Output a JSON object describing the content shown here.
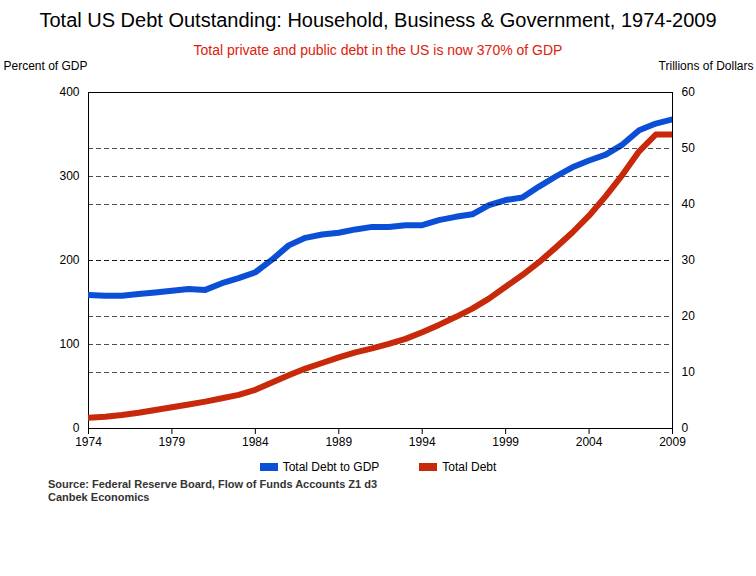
{
  "chart_data": {
    "type": "line",
    "title": "Total US Debt Outstanding: Household, Business & Government, 1974-2009",
    "subtitle": "Total private and public debt in the US is now 370% of GDP",
    "y_label": "Percent of GDP",
    "y2_label": "Trillions of Dollars",
    "x": [
      1974,
      1975,
      1976,
      1977,
      1978,
      1979,
      1980,
      1981,
      1982,
      1983,
      1984,
      1985,
      1986,
      1987,
      1988,
      1989,
      1990,
      1991,
      1992,
      1993,
      1994,
      1995,
      1996,
      1997,
      1998,
      1999,
      2000,
      2001,
      2002,
      2003,
      2004,
      2005,
      2006,
      2007,
      2008,
      2009
    ],
    "xlim": [
      1974,
      2009
    ],
    "xticks": [
      1974,
      1979,
      1984,
      1989,
      1994,
      1999,
      2004,
      2009
    ],
    "ylim": [
      0,
      400
    ],
    "yticks": [
      0,
      100,
      200,
      300,
      400
    ],
    "y2lim": [
      0,
      60
    ],
    "y2ticks": [
      0,
      10,
      20,
      30,
      40,
      50,
      60
    ],
    "grid": true,
    "legend": "bottom",
    "series": [
      {
        "name": "Total Debt to GDP",
        "color": "#0a4fd6",
        "values": [
          159,
          158,
          158,
          160,
          162,
          164,
          166,
          165,
          173,
          179,
          186,
          201,
          218,
          227,
          231,
          233,
          237,
          240,
          240,
          242,
          242,
          248,
          252,
          255,
          266,
          272,
          275,
          288,
          300,
          311,
          319,
          326,
          338,
          355,
          363,
          368
        ]
      },
      {
        "name": "Total Debt",
        "color": "#c8290a",
        "axis": "y2",
        "values": [
          1.9,
          2.1,
          2.4,
          2.8,
          3.3,
          3.8,
          4.3,
          4.8,
          5.4,
          6.0,
          6.9,
          8.2,
          9.5,
          10.7,
          11.7,
          12.7,
          13.6,
          14.3,
          15.1,
          16.0,
          17.2,
          18.5,
          19.9,
          21.4,
          23.2,
          25.3,
          27.4,
          29.7,
          32.3,
          35.0,
          38.0,
          41.5,
          45.3,
          49.5,
          52.5,
          52.5
        ]
      }
    ],
    "annotations": [
      "Source: Federal Reserve Board, Flow of Funds Accounts Z1 d3",
      "Canbek Economics"
    ]
  }
}
